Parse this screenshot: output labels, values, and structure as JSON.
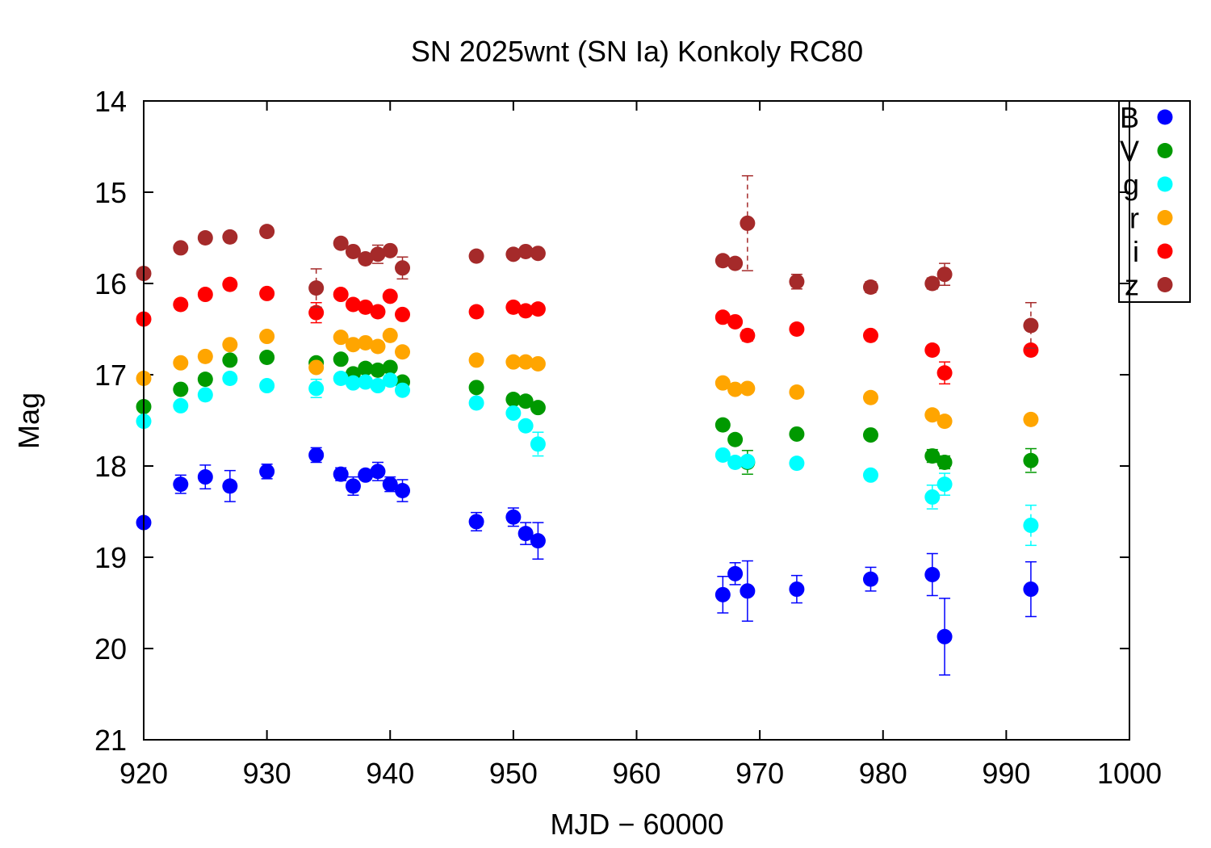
{
  "chart_data": {
    "type": "scatter",
    "title": "SN 2025wnt (SN Ia) Konkoly RC80",
    "xlabel": "MJD − 60000",
    "ylabel": "Mag",
    "xlim": [
      920,
      1000
    ],
    "ylim": [
      21,
      14
    ],
    "y_inverted": true,
    "xticks": [
      "920",
      "930",
      "940",
      "950",
      "960",
      "970",
      "980",
      "990",
      "1000"
    ],
    "yticks": [
      "14",
      "15",
      "16",
      "17",
      "18",
      "19",
      "20",
      "21"
    ],
    "grid": false,
    "legend_position": "top-right",
    "x": [
      920,
      923,
      925,
      927,
      930,
      934,
      936,
      937,
      938,
      939,
      940,
      941,
      947,
      950,
      951,
      952,
      967,
      968,
      969,
      973,
      979,
      984,
      985,
      992
    ],
    "series": [
      {
        "name": "B",
        "color": "#0000ff",
        "values": [
          18.62,
          18.2,
          18.12,
          18.22,
          18.06,
          17.88,
          18.09,
          18.22,
          18.1,
          18.06,
          18.2,
          18.27,
          18.61,
          18.56,
          18.74,
          18.82,
          19.41,
          19.18,
          19.37,
          19.35,
          19.24,
          19.19,
          19.87,
          19.35
        ],
        "errors": [
          0.05,
          0.1,
          0.13,
          0.17,
          0.08,
          0.08,
          0.07,
          0.1,
          0.05,
          0.1,
          0.08,
          0.12,
          0.1,
          0.1,
          0.12,
          0.2,
          0.2,
          0.12,
          0.33,
          0.15,
          0.13,
          0.23,
          0.42,
          0.3
        ]
      },
      {
        "name": "V",
        "color": "#009900",
        "values": [
          17.35,
          17.16,
          17.05,
          16.84,
          16.81,
          16.87,
          16.83,
          16.99,
          16.93,
          16.95,
          16.92,
          17.08,
          17.14,
          17.27,
          17.29,
          17.36,
          17.55,
          17.71,
          17.96,
          17.65,
          17.66,
          17.89,
          17.96,
          17.94
        ],
        "errors": [
          0.02,
          0.02,
          0.02,
          0.02,
          0.02,
          0.04,
          0.02,
          0.02,
          0.02,
          0.02,
          0.02,
          0.03,
          0.02,
          0.02,
          0.02,
          0.03,
          0.02,
          0.02,
          0.13,
          0.02,
          0.02,
          0.07,
          0.07,
          0.13
        ]
      },
      {
        "name": "g",
        "color": "#00ffff",
        "values": [
          17.51,
          17.34,
          17.22,
          17.04,
          17.12,
          17.15,
          17.04,
          17.09,
          17.08,
          17.12,
          17.06,
          17.17,
          17.31,
          17.42,
          17.56,
          17.76,
          17.88,
          17.96,
          17.95,
          17.97,
          18.1,
          18.34,
          18.2,
          18.65
        ],
        "errors": [
          0.02,
          0.02,
          0.02,
          0.02,
          0.04,
          0.1,
          0.02,
          0.02,
          0.02,
          0.02,
          0.02,
          0.03,
          0.02,
          0.02,
          0.02,
          0.13,
          0.02,
          0.02,
          0.05,
          0.02,
          0.02,
          0.13,
          0.12,
          0.22
        ]
      },
      {
        "name": "r",
        "color": "#ffa500",
        "values": [
          17.04,
          16.87,
          16.8,
          16.67,
          16.58,
          16.92,
          16.59,
          16.67,
          16.65,
          16.69,
          16.57,
          16.75,
          16.84,
          16.86,
          16.86,
          16.88,
          17.09,
          17.16,
          17.15,
          17.19,
          17.25,
          17.44,
          17.51,
          17.49
        ],
        "errors": [
          0.02,
          0.02,
          0.02,
          0.02,
          0.02,
          0.03,
          0.02,
          0.02,
          0.02,
          0.02,
          0.02,
          0.02,
          0.02,
          0.02,
          0.02,
          0.02,
          0.02,
          0.02,
          0.02,
          0.02,
          0.02,
          0.02,
          0.02,
          0.02
        ]
      },
      {
        "name": "i",
        "color": "#ff0000",
        "values": [
          16.39,
          16.23,
          16.12,
          16.01,
          16.11,
          16.32,
          16.12,
          16.23,
          16.26,
          16.31,
          16.14,
          16.34,
          16.31,
          16.26,
          16.3,
          16.28,
          16.37,
          16.42,
          16.57,
          16.5,
          16.57,
          16.73,
          16.98,
          16.73
        ],
        "errors": [
          0.02,
          0.02,
          0.02,
          0.02,
          0.02,
          0.11,
          0.02,
          0.02,
          0.02,
          0.02,
          0.02,
          0.02,
          0.02,
          0.02,
          0.02,
          0.02,
          0.02,
          0.02,
          0.06,
          0.02,
          0.02,
          0.02,
          0.12,
          0.02
        ]
      },
      {
        "name": "z",
        "color": "#a52a2a",
        "values": [
          15.89,
          15.61,
          15.5,
          15.49,
          15.43,
          16.05,
          15.56,
          15.65,
          15.73,
          15.68,
          15.64,
          15.83,
          15.7,
          15.68,
          15.65,
          15.67,
          15.75,
          15.78,
          15.34,
          15.98,
          16.04,
          16.0,
          15.9,
          16.46
        ],
        "errors": [
          0.04,
          0.02,
          0.02,
          0.04,
          0.05,
          0.21,
          0.04,
          0.02,
          0.04,
          0.1,
          0.02,
          0.12,
          0.02,
          0.02,
          0.04,
          0.02,
          0.04,
          0.02,
          0.52,
          0.08,
          0.06,
          0.06,
          0.12,
          0.25
        ]
      }
    ]
  }
}
